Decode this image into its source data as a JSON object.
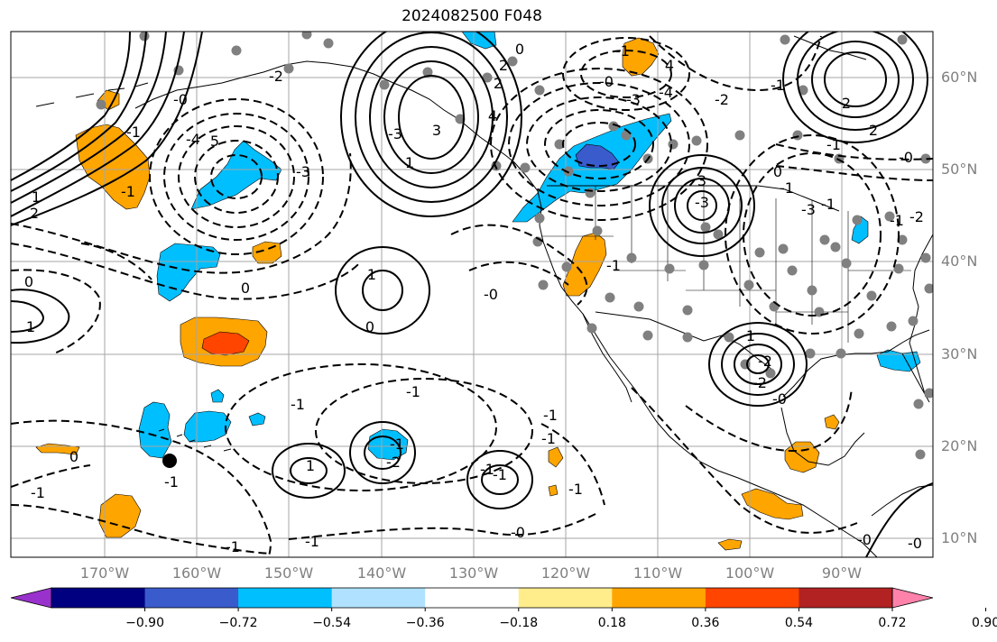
{
  "title": "2024082500 F048",
  "lat_labels": [
    "60°N",
    "50°N",
    "40°N",
    "30°N",
    "20°N",
    "10°N"
  ],
  "lon_labels": [
    "170°W",
    "160°W",
    "150°W",
    "140°W",
    "130°W",
    "120°W",
    "110°W",
    "100°W",
    "90°W"
  ],
  "colorbar": {
    "colors": [
      "#9932cc",
      "#000080",
      "#3a5bcc",
      "#00bfff",
      "#b0e2ff",
      "#ffffff",
      "#ffec8b",
      "#ffa500",
      "#ff4500",
      "#b22222",
      "#ff82ab"
    ],
    "tick_labels": [
      "−0.90",
      "−0.72",
      "−0.54",
      "−0.36",
      "−0.18",
      "0.18",
      "0.36",
      "0.54",
      "0.72",
      "0.90"
    ]
  },
  "contour_labels": [
    "0",
    "-1",
    "-1",
    "1",
    "-1",
    "0",
    "-1",
    "-1",
    "1",
    "-2",
    "-0",
    "-3",
    "-4",
    "5",
    "4",
    "-3",
    "-3",
    "-1",
    "-2",
    "2",
    "-0",
    "-1",
    "1",
    "0",
    "-1",
    "-0",
    "1",
    "2",
    "1",
    "-1",
    "0",
    "-0",
    "-1",
    "0",
    "-2",
    "-3",
    "-4",
    "3",
    "2",
    "1",
    "-0",
    "-1",
    "-1",
    "-2",
    "-3",
    "4",
    "-1",
    "-1",
    "-2",
    "-1",
    "-0",
    "-0",
    "3",
    "-1",
    "2",
    "-1",
    "-1",
    "0",
    "-2",
    "-1",
    "2",
    "-1",
    "-0",
    "-1"
  ]
}
